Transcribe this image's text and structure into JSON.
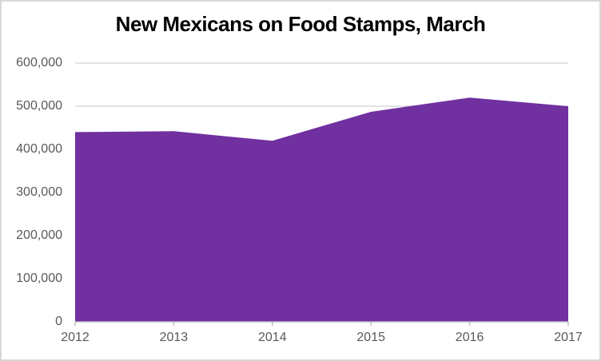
{
  "chart_data": {
    "type": "area",
    "title": "New Mexicans on Food Stamps, March",
    "categories": [
      "2012",
      "2013",
      "2014",
      "2015",
      "2016",
      "2017"
    ],
    "series": [
      {
        "name": "New Mexicans on Food Stamps",
        "values": [
          440000,
          442000,
          420000,
          487000,
          520000,
          500000
        ]
      }
    ],
    "xlabel": "",
    "ylabel": "",
    "ylim": [
      0,
      600000
    ],
    "y_ticks": [
      {
        "value": 0,
        "label": "0"
      },
      {
        "value": 100000,
        "label": "100,000"
      },
      {
        "value": 200000,
        "label": "200,000"
      },
      {
        "value": 300000,
        "label": "300,000"
      },
      {
        "value": 400000,
        "label": "400,000"
      },
      {
        "value": 500000,
        "label": "500,000"
      },
      {
        "value": 600000,
        "label": "600,000"
      }
    ],
    "grid": true,
    "legend": false,
    "colors": {
      "area_fill": "#7030A0",
      "gridline": "#d9d9d9",
      "axis_line": "#bfbfbf",
      "tick_label": "#595959",
      "title": "#000000",
      "frame_border": "#d9d9d9"
    }
  }
}
